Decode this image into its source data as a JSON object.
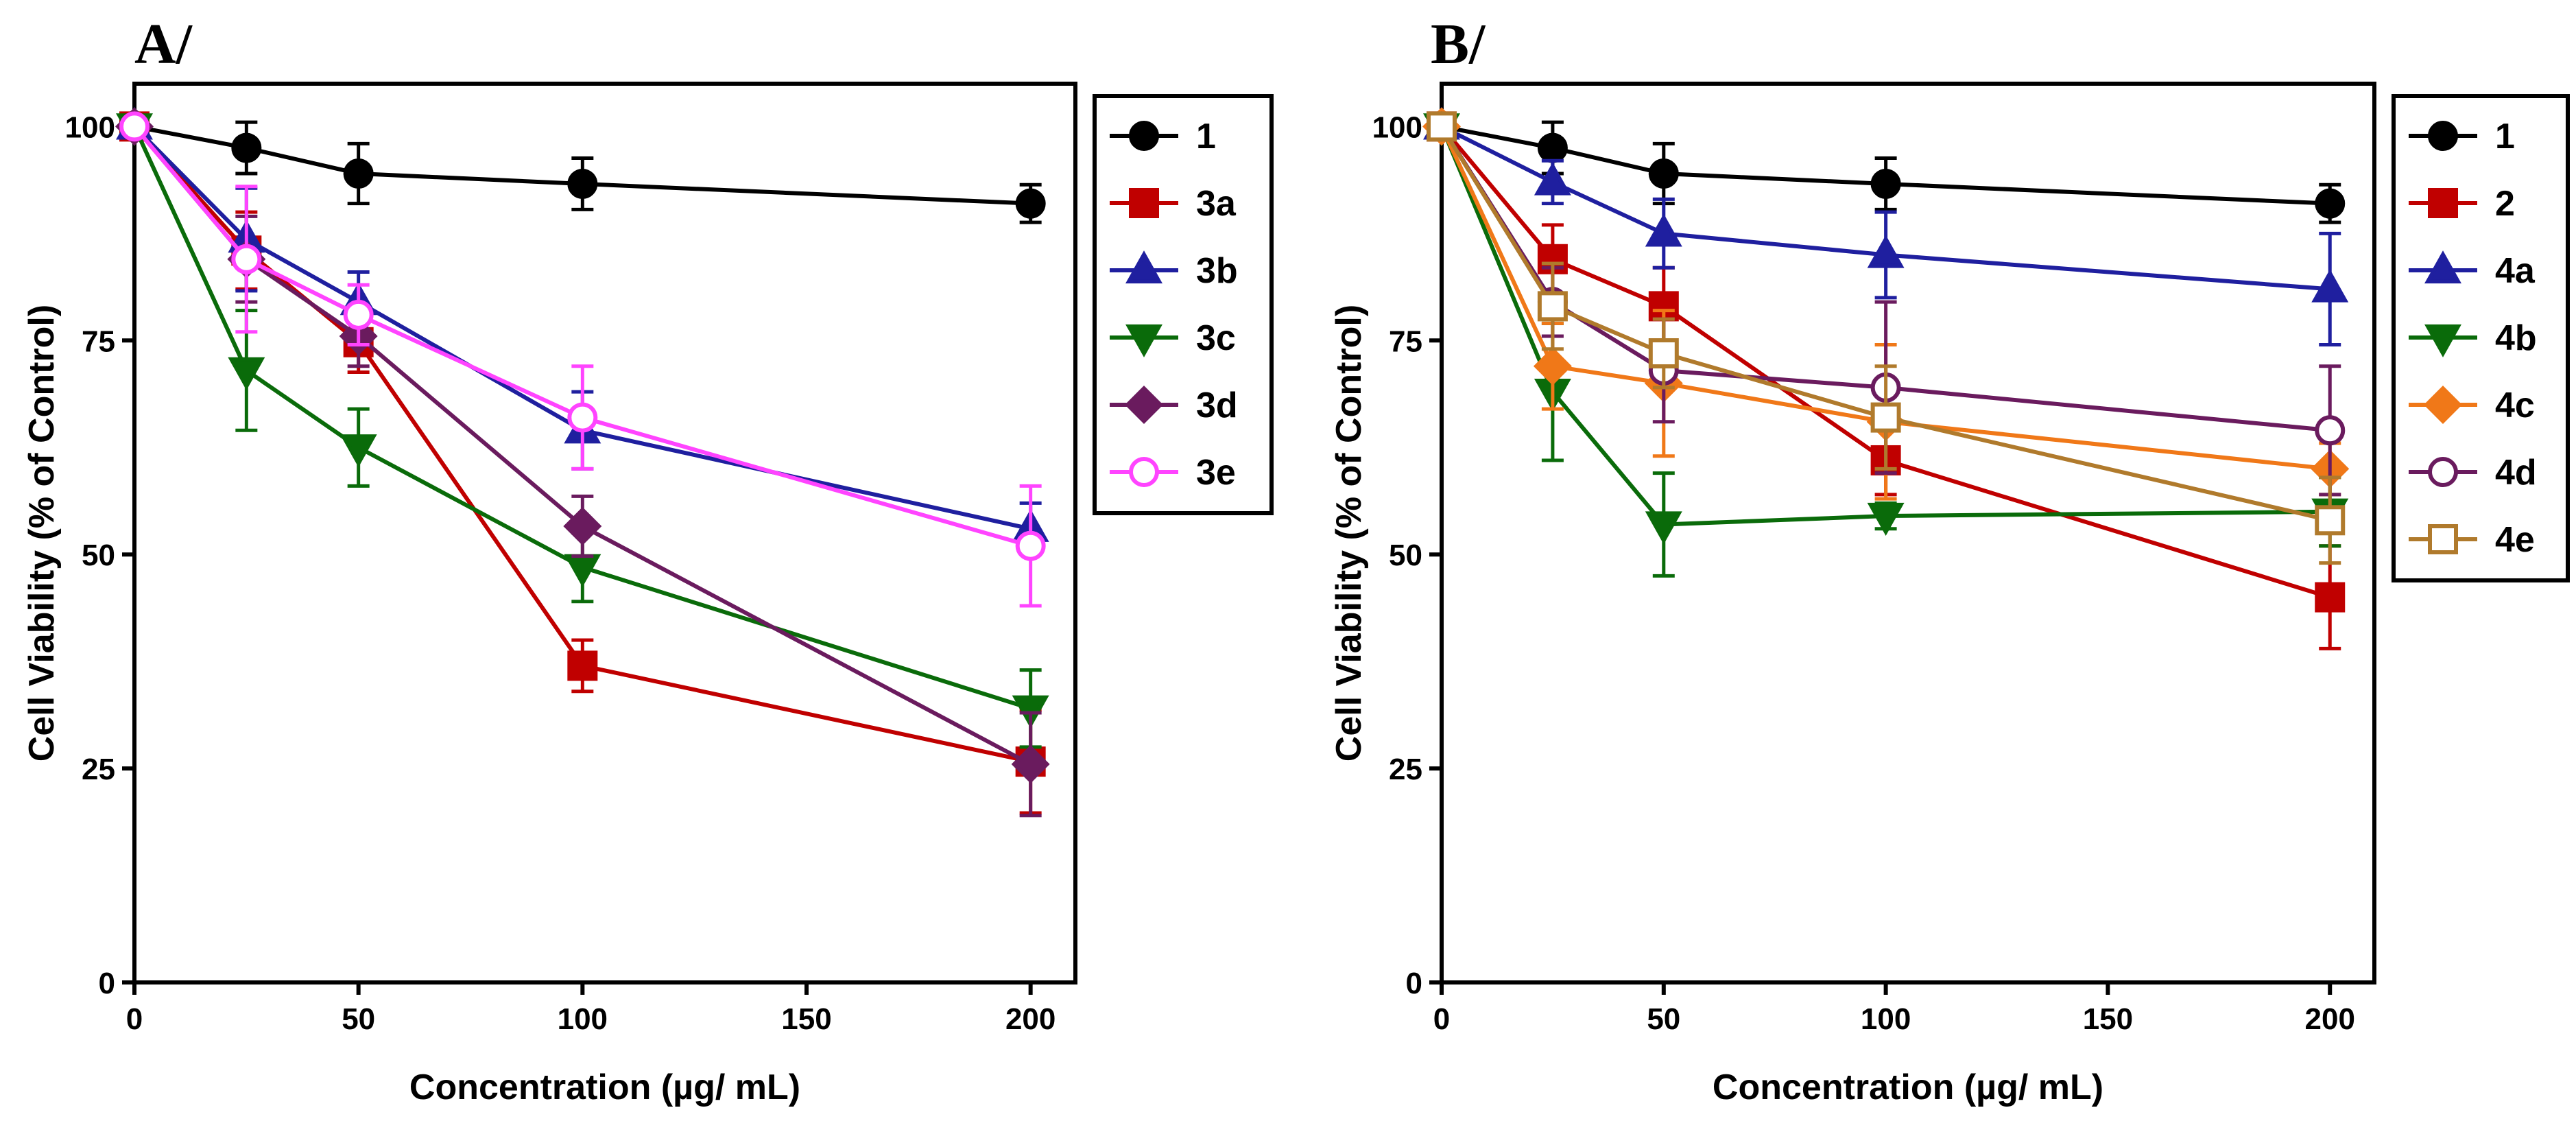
{
  "chart_data": [
    {
      "panel": "A/",
      "type": "line",
      "xlabel": "Concentration (µg/ mL)",
      "ylabel": "Cell Viability (% of Control)",
      "xlim": [
        0,
        210
      ],
      "ylim": [
        0,
        105
      ],
      "xticks": [
        0,
        50,
        100,
        150,
        200
      ],
      "yticks": [
        0,
        25,
        50,
        75,
        100
      ],
      "xtick_labels": [
        "0",
        "50",
        "100",
        "150",
        "200"
      ],
      "ytick_labels": [
        "0",
        "25",
        "50",
        "75",
        "100"
      ],
      "legend_position": "right",
      "x": [
        0,
        25,
        50,
        100,
        200
      ],
      "series": [
        {
          "name": "1",
          "color": "#000000",
          "marker": "circle",
          "fill": true,
          "values": [
            100,
            97.5,
            94.5,
            93.3,
            91
          ],
          "errors": [
            0,
            3,
            3.5,
            3,
            2.2
          ]
        },
        {
          "name": "3a",
          "color": "#c00000",
          "marker": "square",
          "fill": true,
          "values": [
            100,
            85.5,
            74.8,
            37,
            25.8
          ],
          "errors": [
            0,
            4.5,
            3.5,
            3,
            6
          ]
        },
        {
          "name": "3b",
          "color": "#1f1f9f",
          "marker": "triangle-up",
          "fill": true,
          "values": [
            100,
            86.8,
            79.5,
            64.5,
            53
          ],
          "errors": [
            0,
            6,
            3.5,
            4.5,
            3
          ]
        },
        {
          "name": "3c",
          "color": "#0a6b0a",
          "marker": "triangle-down",
          "fill": true,
          "values": [
            100,
            71.5,
            62.5,
            48.5,
            32
          ],
          "errors": [
            0,
            7,
            4.5,
            4,
            4.5
          ]
        },
        {
          "name": "3d",
          "color": "#6a1b5e",
          "marker": "diamond",
          "fill": true,
          "values": [
            100,
            84.5,
            75.5,
            53.3,
            25.5
          ],
          "errors": [
            0,
            5,
            3.5,
            3.5,
            6
          ]
        },
        {
          "name": "3e",
          "color": "#ff44ff",
          "marker": "circle",
          "fill": false,
          "values": [
            100,
            84.5,
            78,
            66,
            51
          ],
          "errors": [
            0,
            8.5,
            3.5,
            6,
            7
          ]
        }
      ]
    },
    {
      "panel": "B/",
      "type": "line",
      "xlabel": "Concentration (µg/ mL)",
      "ylabel": "Cell Viability (% of Control)",
      "xlim": [
        0,
        210
      ],
      "ylim": [
        0,
        105
      ],
      "xticks": [
        0,
        50,
        100,
        150,
        200
      ],
      "yticks": [
        0,
        25,
        50,
        75,
        100
      ],
      "xtick_labels": [
        "0",
        "50",
        "100",
        "150",
        "200"
      ],
      "ytick_labels": [
        "0",
        "25",
        "50",
        "75",
        "100"
      ],
      "legend_position": "right",
      "x": [
        0,
        25,
        50,
        100,
        200
      ],
      "series": [
        {
          "name": "1",
          "color": "#000000",
          "marker": "circle",
          "fill": true,
          "values": [
            100,
            97.5,
            94.5,
            93.3,
            91
          ],
          "errors": [
            0,
            3,
            3.5,
            3,
            2.2
          ]
        },
        {
          "name": "2",
          "color": "#c00000",
          "marker": "square",
          "fill": true,
          "values": [
            100,
            84.5,
            79,
            61,
            45
          ],
          "errors": [
            0,
            4,
            4.5,
            4,
            6
          ]
        },
        {
          "name": "4a",
          "color": "#1f1f9f",
          "marker": "triangle-up",
          "fill": true,
          "values": [
            100,
            93.5,
            87.5,
            85,
            81
          ],
          "errors": [
            0,
            2.5,
            4,
            5,
            6.5
          ]
        },
        {
          "name": "4b",
          "color": "#0a6b0a",
          "marker": "triangle-down",
          "fill": true,
          "values": [
            100,
            69,
            53.5,
            54.5,
            55
          ],
          "errors": [
            0,
            8,
            6,
            1.5,
            4
          ]
        },
        {
          "name": "4c",
          "color": "#f07818",
          "marker": "diamond",
          "fill": true,
          "values": [
            100,
            72,
            70,
            65.5,
            60
          ],
          "errors": [
            0,
            5,
            8.5,
            9,
            3
          ]
        },
        {
          "name": "4d",
          "color": "#6a1b5e",
          "marker": "circle",
          "fill": false,
          "values": [
            100,
            79.5,
            71.5,
            69.5,
            64.5
          ],
          "errors": [
            0,
            4,
            6,
            10,
            7.5
          ]
        },
        {
          "name": "4e",
          "color": "#b07a2c",
          "marker": "square",
          "fill": false,
          "values": [
            100,
            79,
            73.5,
            66,
            54
          ],
          "errors": [
            0,
            5,
            4,
            6,
            5
          ]
        }
      ]
    }
  ]
}
